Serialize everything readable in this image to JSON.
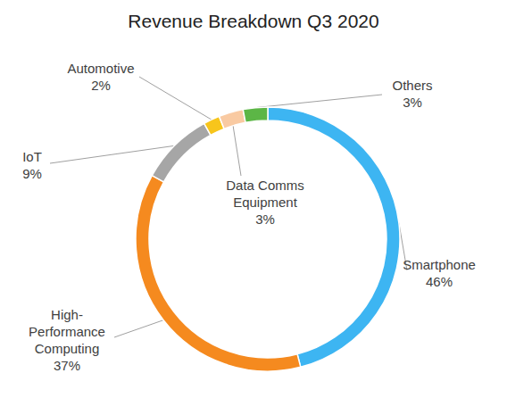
{
  "chart_data": {
    "type": "pie",
    "title": "Revenue Breakdown Q3 2020",
    "categories": [
      "Smartphone",
      "High-\nPerformance\nComputing",
      "IoT",
      "Automotive",
      "Data Comms\nEquipment",
      "Others"
    ],
    "values": [
      46,
      37,
      9,
      2,
      3,
      3
    ],
    "value_labels": [
      "46%",
      "37%",
      "9%",
      "2%",
      "3%",
      "3%"
    ],
    "colors": [
      "#3db5f2",
      "#f58a1f",
      "#a6a6a6",
      "#f7c51c",
      "#f9caa2",
      "#5cb646"
    ],
    "data_labels": true
  }
}
